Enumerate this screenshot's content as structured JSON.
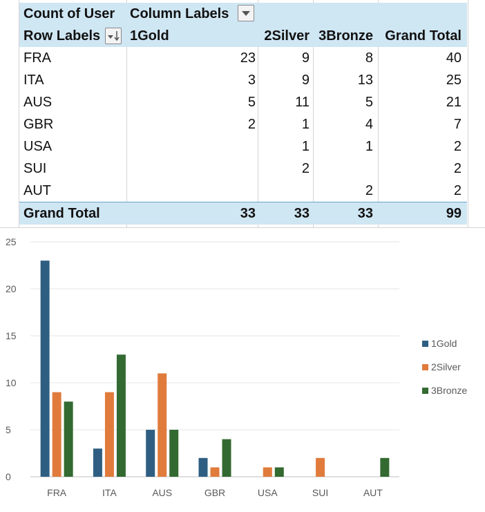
{
  "pivot": {
    "value_field": "Count of User",
    "column_labels": "Column Labels",
    "row_labels": "Row Labels",
    "columns": [
      "1Gold",
      "2Silver",
      "3Bronze",
      "Grand Total"
    ],
    "rows": [
      {
        "label": "FRA",
        "values": [
          "23",
          "9",
          "8",
          "40"
        ]
      },
      {
        "label": "ITA",
        "values": [
          "3",
          "9",
          "13",
          "25"
        ]
      },
      {
        "label": "AUS",
        "values": [
          "5",
          "11",
          "5",
          "21"
        ]
      },
      {
        "label": "GBR",
        "values": [
          "2",
          "1",
          "4",
          "7"
        ]
      },
      {
        "label": "USA",
        "values": [
          "",
          "1",
          "1",
          "2"
        ]
      },
      {
        "label": "SUI",
        "values": [
          "",
          "2",
          "",
          "2"
        ]
      },
      {
        "label": "AUT",
        "values": [
          "",
          "",
          "2",
          "2"
        ]
      }
    ],
    "grand_total": {
      "label": "Grand Total",
      "values": [
        "33",
        "33",
        "33",
        "99"
      ]
    },
    "header_fill": "#cfe6f3",
    "total_border": "#6aa6cd"
  },
  "icons": {
    "column_filter": "dropdown-arrow-icon",
    "row_filter": "filter-sort-descending-icon"
  },
  "chart_data": {
    "type": "bar",
    "categories": [
      "FRA",
      "ITA",
      "AUS",
      "GBR",
      "USA",
      "SUI",
      "AUT"
    ],
    "series": [
      {
        "name": "1Gold",
        "values": [
          23,
          3,
          5,
          2,
          0,
          0,
          0
        ],
        "color": "#2e5f82"
      },
      {
        "name": "2Silver",
        "values": [
          9,
          9,
          11,
          1,
          1,
          2,
          0
        ],
        "color": "#e07b3c"
      },
      {
        "name": "3Bronze",
        "values": [
          8,
          13,
          5,
          4,
          1,
          0,
          2
        ],
        "color": "#336a31"
      }
    ],
    "y_ticks": [
      "0",
      "5",
      "10",
      "15",
      "20",
      "25"
    ],
    "ylim": [
      0,
      25
    ],
    "grid": true,
    "legend_position": "right"
  }
}
